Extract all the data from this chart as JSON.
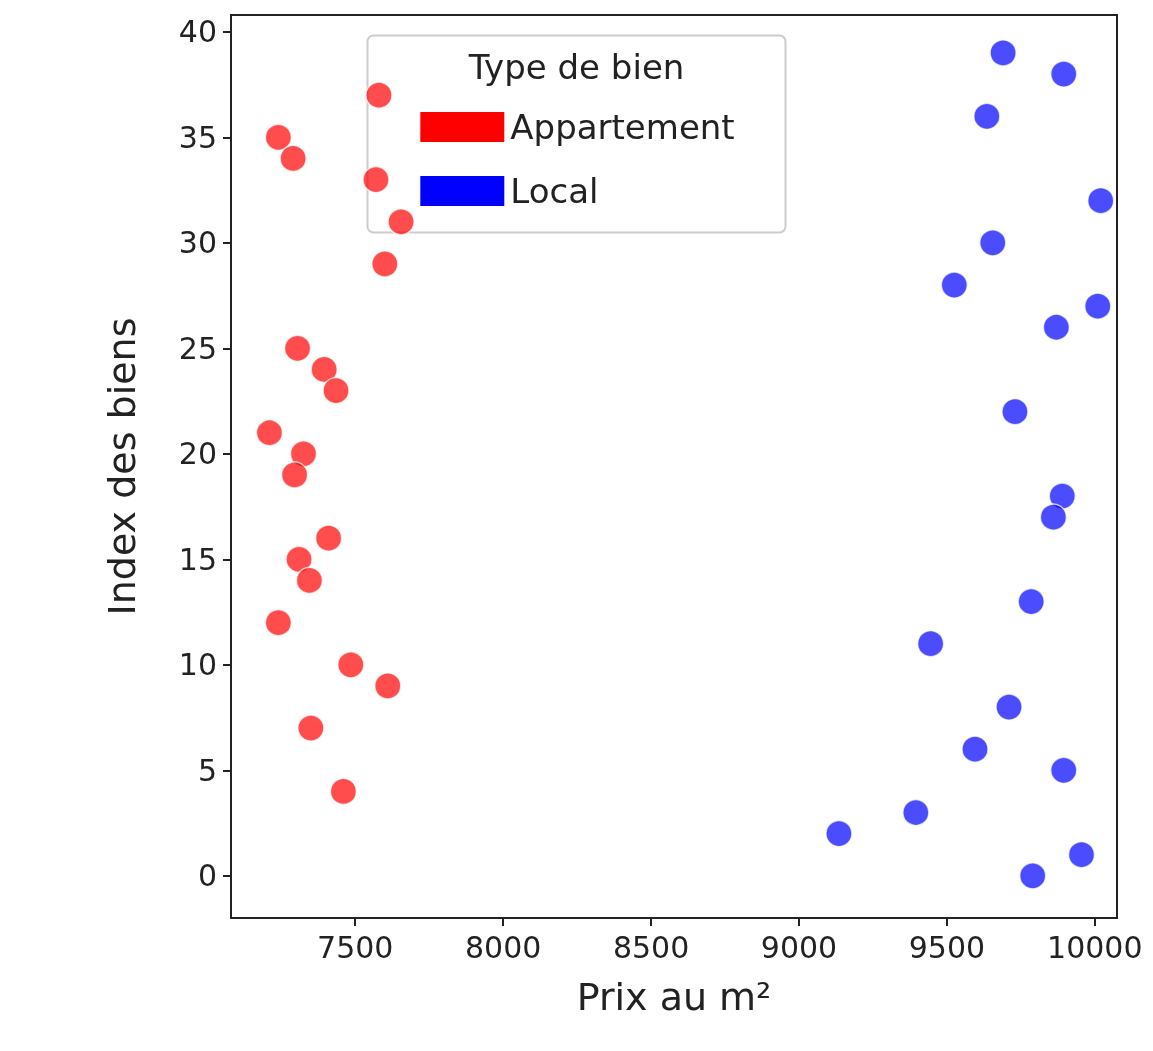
{
  "chart_data": {
    "type": "scatter",
    "xlabel": "Prix au m²",
    "ylabel": "Index des biens",
    "legend_title": "Type de bien",
    "xlim": [
      7080,
      10075
    ],
    "xticks": [
      7500,
      8000,
      8500,
      9000,
      9500,
      10000
    ],
    "ylim": [
      -2,
      40.8
    ],
    "yticks": [
      0,
      5,
      10,
      15,
      20,
      25,
      30,
      35,
      40
    ],
    "grid": false,
    "legend": "top",
    "marker": "circle",
    "series": [
      {
        "name": "Appartement",
        "color": "#ff0000",
        "x": [
          7580,
          7240,
          7290,
          7570,
          7655,
          7600,
          7305,
          7395,
          7435,
          7210,
          7325,
          7295,
          7410,
          7310,
          7345,
          7240,
          7485,
          7610,
          7350,
          7460
        ],
        "values": [
          37,
          35,
          34,
          33,
          31,
          29,
          25,
          24,
          23,
          21,
          20,
          19,
          16,
          15,
          14,
          12,
          10,
          9,
          7,
          4
        ]
      },
      {
        "name": "Local",
        "color": "#0000ff",
        "x": [
          9690,
          9895,
          9635,
          10020,
          9655,
          9525,
          10010,
          9870,
          9730,
          9890,
          9860,
          9785,
          9445,
          9710,
          9595,
          9895,
          9395,
          9135,
          9955,
          9790
        ],
        "values": [
          39,
          38,
          36,
          32,
          30,
          28,
          27,
          26,
          22,
          18,
          17,
          13,
          11,
          8,
          6,
          5,
          3,
          2,
          1,
          0
        ]
      }
    ]
  }
}
